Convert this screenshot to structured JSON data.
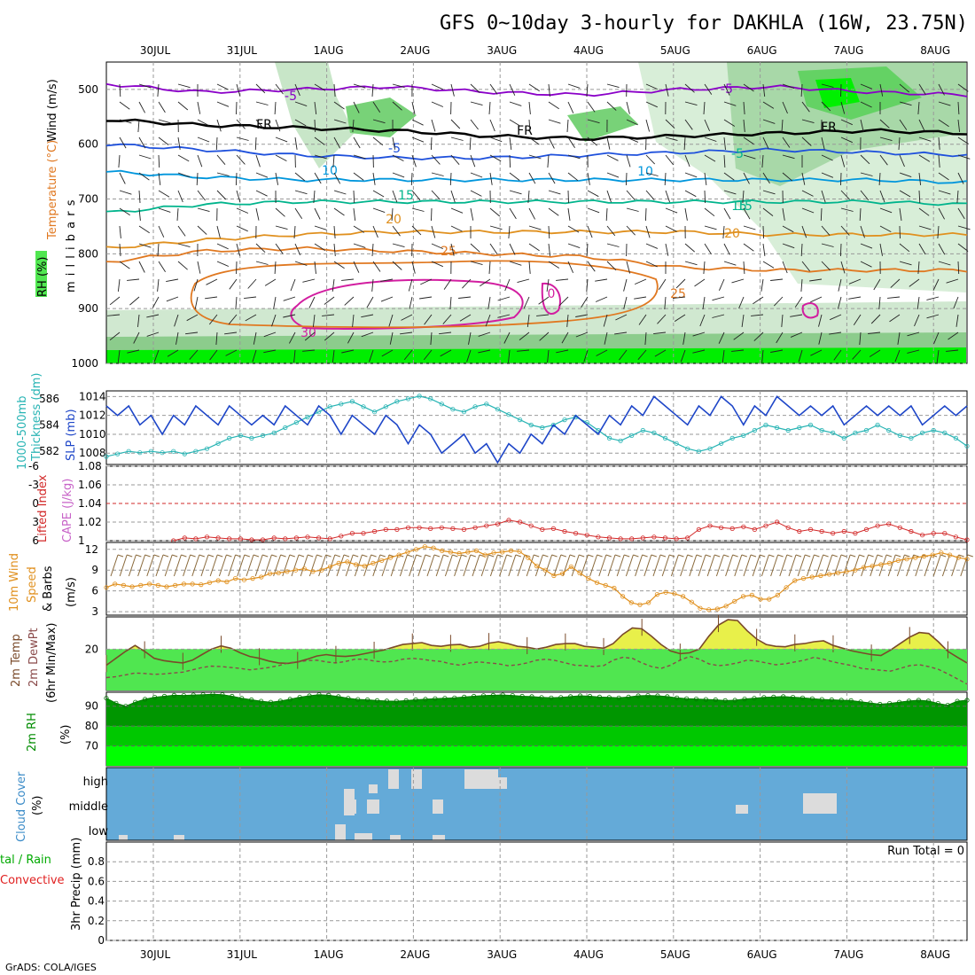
{
  "title": "GFS 0~10day 3-hourly for DAKHLA (16W, 23.75N)",
  "footer": "GrADS: COLA/IGES",
  "dates": [
    "30JUL",
    "31JUL",
    "1AUG",
    "2AUG",
    "3AUG",
    "4AUG",
    "5AUG",
    "6AUG",
    "7AUG",
    "8AUG"
  ],
  "colors": {
    "purple": "#8a00c8",
    "black": "#000000",
    "blue": "#1e50dc",
    "cyan": "#0096dc",
    "teal": "#00b48c",
    "orange": "#e0901e",
    "orange2": "#e07820",
    "magenta": "#d21ea0",
    "green": "#50e650",
    "darkgreen": "#009600",
    "brightgreen": "#00ff00",
    "cloud": "#64aad8",
    "cloudgrey": "#dcdcdc",
    "slp": "#1e46c8",
    "thick": "#28b4b4",
    "lifted": "#d22828",
    "wind10": "#e0901e"
  },
  "chart_data": [
    {
      "type": "heatmap",
      "panel": "upper-air",
      "ylabel": "m i l l i b a r s",
      "left_labels": [
        "Wind (m/s)",
        "Temperature (°C)",
        "RH (%)"
      ],
      "ylim": [
        1000,
        450
      ],
      "yticks": [
        500,
        600,
        700,
        800,
        900,
        1000
      ],
      "contours": [
        {
          "label": "-5",
          "level_mb": [
            490,
            505,
            500,
            495,
            505,
            510,
            500,
            495,
            505,
            510
          ]
        },
        {
          "label": "FR",
          "level_mb": [
            555,
            565,
            570,
            575,
            585,
            590,
            585,
            580,
            575,
            580
          ]
        },
        {
          "label": "-5",
          "level_mb": [
            600,
            610,
            620,
            625,
            625,
            620,
            615,
            610,
            615,
            620
          ]
        },
        {
          "label": "10",
          "level_mb": [
            650,
            660,
            665,
            665,
            665,
            665,
            665,
            665,
            665,
            670
          ]
        },
        {
          "label": "15",
          "level_mb": [
            725,
            710,
            705,
            705,
            705,
            705,
            705,
            705,
            705,
            710
          ]
        },
        {
          "label": "20",
          "level_mb": [
            790,
            775,
            765,
            760,
            760,
            760,
            760,
            765,
            765,
            765
          ]
        },
        {
          "label": "25",
          "level_mb": [
            815,
            795,
            790,
            795,
            800,
            805,
            825,
            830,
            830,
            830
          ]
        },
        {
          "label": "30",
          "level_mb": [
            880,
            880,
            880,
            880,
            880,
            880,
            885,
            890,
            885,
            880
          ]
        }
      ],
      "contour_text": [
        "-5",
        "-5",
        "FR",
        "FR",
        "FR",
        "-5",
        "-5",
        "10",
        "10",
        "15",
        "15",
        "15",
        "20",
        "20",
        "25",
        "25",
        "30",
        "0"
      ]
    },
    {
      "type": "line",
      "panel": "slp-thickness",
      "series": [
        {
          "name": "SLP (mb)",
          "axis": "right",
          "values": [
            1013,
            1012,
            1013,
            1011,
            1012,
            1010,
            1012,
            1011,
            1013,
            1012,
            1011,
            1013,
            1012,
            1011,
            1012,
            1011,
            1013,
            1012,
            1011,
            1013,
            1012,
            1010,
            1012,
            1011,
            1010,
            1012,
            1011,
            1009,
            1011,
            1010,
            1008,
            1009,
            1010,
            1008,
            1009,
            1007,
            1009,
            1008,
            1010,
            1009,
            1011,
            1010,
            1012,
            1011,
            1010,
            1012,
            1011,
            1013,
            1012,
            1014,
            1013,
            1012,
            1011,
            1013,
            1012,
            1014,
            1013,
            1011,
            1013,
            1012,
            1014,
            1013,
            1012,
            1013,
            1012,
            1013,
            1011,
            1012,
            1013,
            1012,
            1013,
            1012,
            1013,
            1011,
            1012,
            1013,
            1012,
            1013
          ]
        },
        {
          "name": "1000-500mb Thickness (dm)",
          "axis": "left",
          "values": [
            581.6,
            581.8,
            582,
            581.9,
            582,
            581.9,
            582,
            581.8,
            582,
            582.2,
            582.6,
            583,
            583.2,
            583,
            583.2,
            583.4,
            583.8,
            584.2,
            584.6,
            585,
            585.4,
            585.6,
            585.8,
            585.4,
            585,
            585.4,
            585.8,
            586,
            586.2,
            586,
            585.6,
            585.2,
            585,
            585.4,
            585.6,
            585.2,
            584.8,
            584.4,
            584,
            583.8,
            584,
            584.4,
            584.6,
            584.2,
            583.6,
            583,
            582.8,
            583.2,
            583.6,
            583.4,
            583,
            582.6,
            582.2,
            582,
            582.2,
            582.6,
            583,
            583.2,
            583.6,
            584,
            583.8,
            583.6,
            583.8,
            584,
            583.6,
            583.4,
            583,
            583.4,
            583.6,
            584,
            583.6,
            583.2,
            583,
            583.4,
            583.6,
            583.4,
            583,
            582.4
          ]
        }
      ],
      "ylim_left": [
        581,
        586.6
      ],
      "yticks_left": [
        582,
        584,
        586
      ],
      "ylim_right": [
        1006.8,
        1014.6
      ],
      "yticks_right": [
        1008,
        1010,
        1012,
        1014
      ]
    },
    {
      "type": "line",
      "panel": "cape-lifted",
      "series": [
        {
          "name": "Lifted Index",
          "values": [
            null,
            null,
            null,
            null,
            null,
            null,
            null,
            null,
            null,
            null,
            null,
            null,
            null,
            null,
            null,
            null,
            null,
            null,
            null,
            null,
            null,
            null,
            null,
            null,
            null,
            null,
            null,
            null,
            null,
            null,
            null,
            null,
            null,
            null,
            null,
            null,
            null,
            null,
            null,
            null,
            null,
            null,
            null,
            null,
            null,
            null,
            null,
            null,
            null,
            null,
            null,
            null,
            null,
            null,
            null,
            null,
            null,
            null,
            null,
            null,
            null,
            null,
            null,
            null,
            null,
            null,
            null,
            null,
            null,
            null,
            null,
            null,
            null,
            null,
            null,
            null,
            null,
            null
          ]
        },
        {
          "name": "CAPE (J/kg)",
          "values": [
            null,
            null,
            null,
            null,
            null,
            null,
            1,
            1.003,
            1.002,
            1.004,
            1.003,
            1.002,
            1.002,
            1.001,
            1.001,
            1.003,
            1.002,
            1.003,
            1.004,
            1.003,
            1.002,
            1.005,
            1.008,
            1.008,
            1.01,
            1.012,
            1.012,
            1.014,
            1.014,
            1.013,
            1.014,
            1.013,
            1.012,
            1.014,
            1.016,
            1.018,
            1.022,
            1.02,
            1.016,
            1.012,
            1.013,
            1.01,
            1.008,
            1.006,
            1.004,
            1.003,
            1.002,
            1.002,
            1.003,
            1.004,
            1.003,
            1.002,
            1.003,
            1.012,
            1.016,
            1.014,
            1.013,
            1.015,
            1.012,
            1.016,
            1.02,
            1.014,
            1.01,
            1.012,
            1.01,
            1.008,
            1.01,
            1.008,
            1.012,
            1.016,
            1.018,
            1.014,
            1.01,
            1.006,
            1.008,
            1.008,
            1.004,
            1.001
          ]
        }
      ],
      "ylim_left_lifted": [
        6,
        -6
      ],
      "yticks_lifted": [
        "-6",
        "-3",
        "0",
        "3",
        "6"
      ],
      "ylim_right": [
        1,
        1.08
      ],
      "yticks_right": [
        "1.08",
        "1.06",
        "1.04",
        "1.02",
        "1"
      ]
    },
    {
      "type": "line",
      "panel": "wind10m",
      "ylabel": "(m/s)",
      "ylim": [
        2.5,
        13
      ],
      "yticks": [
        3,
        6,
        9,
        12
      ],
      "series": [
        {
          "name": "10m Wind Speed",
          "values": [
            6.5,
            7,
            6.8,
            6.6,
            6.8,
            7,
            6.8,
            6.6,
            6.8,
            7,
            7,
            6.9,
            7.2,
            7.5,
            7.3,
            7.8,
            7.6,
            7.8,
            8,
            8.5,
            8.6,
            8.8,
            9,
            9.2,
            8.8,
            9,
            9.5,
            10,
            10.2,
            9.8,
            9.6,
            10,
            10.4,
            10.8,
            11.2,
            11.6,
            12,
            12.4,
            12.2,
            11.8,
            11.6,
            11.4,
            11.6,
            11.8,
            11.2,
            11.5,
            11.6,
            11.8,
            11.7,
            10.8,
            9.6,
            9,
            8.2,
            8.5,
            9.5,
            8.6,
            7.8,
            7.2,
            6.8,
            6.4,
            5.2,
            4.3,
            4,
            4.3,
            5.5,
            5.8,
            5.6,
            5.2,
            4.4,
            3.5,
            3.3,
            3.4,
            3.8,
            4.5,
            5.2,
            5.4,
            4.8,
            4.8,
            5.4,
            6.5,
            7.5,
            7.8,
            8,
            8.2,
            8.4,
            8.6,
            8.8,
            9,
            9.4,
            9.6,
            9.8,
            10,
            10.4,
            10.6,
            10.8,
            11,
            11.2,
            11.5,
            11.2,
            10.8,
            10.6
          ]
        }
      ]
    },
    {
      "type": "area",
      "panel": "temp-dewpoint",
      "ylabel": "(6hr Min/Max)",
      "ylim": [
        11,
        27
      ],
      "yticks": [
        20
      ],
      "series": [
        {
          "name": "2m Temp",
          "values": [
            16.5,
            18,
            19.5,
            20.8,
            19.5,
            18,
            17.5,
            17.2,
            17,
            17.6,
            18.8,
            20,
            20.7,
            20.2,
            19.2,
            18.4,
            18,
            17.4,
            17,
            16.9,
            17.2,
            17.8,
            18.5,
            18.8,
            18.5,
            18.4,
            18.6,
            19,
            19.4,
            19.8,
            20.4,
            21,
            21.2,
            21.4,
            20.8,
            20.6,
            20.9,
            21,
            20.4,
            20.6,
            21.3,
            21.6,
            21.2,
            20.6,
            20.4,
            20,
            20.4,
            21,
            21.2,
            21.2,
            20.6,
            20.4,
            20.2,
            21.2,
            23.2,
            24.6,
            24.4,
            22.8,
            21,
            19.6,
            19,
            19.2,
            20,
            22.8,
            25.2,
            26.4,
            26.2,
            24,
            22.2,
            21,
            20.6,
            20.5,
            21,
            21.2,
            21.6,
            21.8,
            20.8,
            20.2,
            19.6,
            19.2,
            18.8,
            18.6,
            19.8,
            21.2,
            22.6,
            23.6,
            23.4,
            21.6,
            19.5,
            18.2,
            17
          ]
        },
        {
          "name": "2m DewPt",
          "values": [
            13.8,
            14,
            14.4,
            14.8,
            14.7,
            14.5,
            14.6,
            14.8,
            15,
            15.5,
            16,
            16.3,
            16.2,
            16,
            15.8,
            15.5,
            15.7,
            16,
            16.4,
            17,
            17.2,
            17.5,
            17.6,
            17.2,
            17,
            17.3,
            17.8,
            17.8,
            17.4,
            17.2,
            17.3,
            17.8,
            18,
            17.8,
            17.5,
            17.3,
            16.8,
            16.5,
            17,
            17.2,
            17,
            16.8,
            16.4,
            16.6,
            17,
            17.6,
            17.8,
            17.5,
            17,
            16.5,
            16.4,
            16.2,
            16.4,
            17.6,
            18.2,
            18,
            17,
            16.2,
            15.8,
            16.5,
            17.6,
            18.4,
            17.8,
            16.8,
            16.4,
            16.6,
            17,
            17.6,
            17.4,
            17,
            16.6,
            16.8,
            17.2,
            17.6,
            18.2,
            17.8,
            17.2,
            16.8,
            16.4,
            15.8,
            15.6,
            15.4,
            15.2,
            15.8,
            16.4,
            16.6,
            16.2,
            15.6,
            14.6,
            13.5,
            12.4
          ]
        }
      ]
    },
    {
      "type": "area",
      "panel": "rh2m",
      "ylabel": "(%)",
      "ylim": [
        60,
        97
      ],
      "yticks": [
        70,
        80,
        90
      ],
      "series": [
        {
          "name": "2m RH",
          "values": [
            94,
            91.5,
            90,
            92,
            93.5,
            94.5,
            95,
            95.5,
            95.4,
            95.6,
            95.8,
            96,
            95.8,
            95,
            94,
            93.2,
            92.5,
            92,
            92.6,
            93.5,
            94.5,
            95.2,
            95.8,
            95.5,
            94.8,
            94,
            93.4,
            93.2,
            92.8,
            92.6,
            92.5,
            92.8,
            93.2,
            93.5,
            93.8,
            94,
            94.2,
            94.6,
            95,
            95.3,
            95.5,
            95.6,
            95.4,
            95,
            94.8,
            94.4,
            94.2,
            94.4,
            94.8,
            95.2,
            95,
            94.6,
            94.4,
            94.2,
            94.6,
            95.2,
            95.4,
            95.2,
            94.8,
            94.2,
            93.8,
            93.6,
            93.4,
            93.2,
            92.8,
            93,
            93.6,
            94,
            94.4,
            94.6,
            94.8,
            94.5,
            94.2,
            93.8,
            93.4,
            93.2,
            93,
            92.8,
            92.2,
            91.6,
            91,
            91.4,
            92,
            92.6,
            93,
            92.6,
            91.4,
            90.5,
            92.5,
            93
          ]
        }
      ]
    },
    {
      "type": "heatmap",
      "panel": "cloud-cover",
      "ylabel": "(%)",
      "rows": [
        "high",
        "middle",
        "low"
      ]
    },
    {
      "type": "bar",
      "panel": "precip",
      "ylabel": "3hr Precip (mm)",
      "left_labels": [
        "tal / Rain",
        "Convective"
      ],
      "ylim": [
        0,
        1
      ],
      "yticks": [
        "0",
        "0.2",
        "0.4",
        "0.6",
        "0.8"
      ],
      "annotation": "Run Total = 0",
      "values": []
    }
  ]
}
